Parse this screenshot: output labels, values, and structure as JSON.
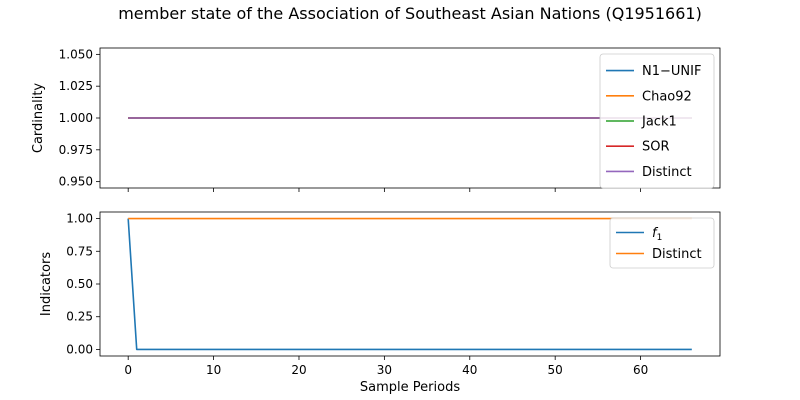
{
  "figure_title": "member state of the Association of Southeast Asian Nations (Q1951661)",
  "chart_data": [
    {
      "type": "line",
      "ylabel": "Cardinality",
      "xlabel": "",
      "xlim": [
        -3.3,
        69.3
      ],
      "ylim": [
        0.945,
        1.055
      ],
      "xticks": [
        0,
        10,
        20,
        30,
        40,
        50,
        60
      ],
      "yticks": [
        0.95,
        0.975,
        1.0,
        1.025,
        1.05
      ],
      "ytick_labels": [
        "0.950",
        "0.975",
        "1.000",
        "1.025",
        "1.050"
      ],
      "show_xtick_labels": false,
      "grid": false,
      "legend_position": "top-right",
      "series": [
        {
          "name": "N1−UNIF",
          "color": "#1f77b4",
          "x": [
            0,
            66
          ],
          "y": [
            1.0,
            1.0
          ]
        },
        {
          "name": "Chao92",
          "color": "#ff7f0e",
          "x": [
            0,
            66
          ],
          "y": [
            1.0,
            1.0
          ]
        },
        {
          "name": "Jack1",
          "color": "#2ca02c",
          "x": [
            0,
            66
          ],
          "y": [
            1.0,
            1.0
          ]
        },
        {
          "name": "SOR",
          "color": "#d62728",
          "x": [
            0,
            66
          ],
          "y": [
            1.0,
            1.0
          ]
        },
        {
          "name": "Distinct",
          "color": "#9467bd",
          "x": [
            0,
            66
          ],
          "y": [
            1.0,
            1.0
          ]
        }
      ]
    },
    {
      "type": "line",
      "ylabel": "Indicators",
      "xlabel": "Sample Periods",
      "xlim": [
        -3.3,
        69.3
      ],
      "ylim": [
        -0.05,
        1.05
      ],
      "xticks": [
        0,
        10,
        20,
        30,
        40,
        50,
        60
      ],
      "yticks": [
        0.0,
        0.25,
        0.5,
        0.75,
        1.0
      ],
      "ytick_labels": [
        "0.00",
        "0.25",
        "0.50",
        "0.75",
        "1.00"
      ],
      "show_xtick_labels": true,
      "grid": false,
      "legend_position": "top-right",
      "series": [
        {
          "name": "f",
          "name_subscript": "1",
          "color": "#1f77b4",
          "x": [
            0,
            1,
            66
          ],
          "y": [
            1.0,
            0.0,
            0.0
          ]
        },
        {
          "name": "Distinct",
          "color": "#ff7f0e",
          "x": [
            0,
            66
          ],
          "y": [
            1.0,
            1.0
          ]
        }
      ]
    }
  ]
}
